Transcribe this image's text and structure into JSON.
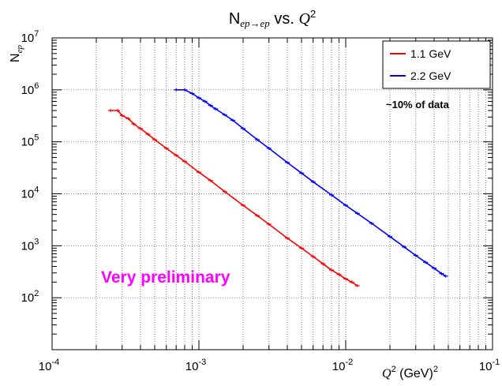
{
  "chart_data": {
    "type": "line",
    "title": {
      "prefix": "N",
      "sub": "ep→ep",
      "middle": " vs. ",
      "var": "Q",
      "sup": "2"
    },
    "ylabel": {
      "base": "N",
      "sub": "ep"
    },
    "xlabel": {
      "var": "Q",
      "sup": "2",
      "unit": " (GeV)",
      "unit_sup": "2"
    },
    "x_scale": "log",
    "y_scale": "log",
    "xlim": [
      0.0001,
      0.1
    ],
    "ylim": [
      10,
      10000000
    ],
    "x_ticks": [
      {
        "base": "10",
        "exp": "-4",
        "value": 0.0001
      },
      {
        "base": "10",
        "exp": "-3",
        "value": 0.001
      },
      {
        "base": "10",
        "exp": "-2",
        "value": 0.01
      },
      {
        "base": "10",
        "exp": "-1",
        "value": 0.1
      }
    ],
    "y_ticks": [
      {
        "base": "10",
        "exp": "2",
        "value": 100
      },
      {
        "base": "10",
        "exp": "3",
        "value": 1000
      },
      {
        "base": "10",
        "exp": "4",
        "value": 10000
      },
      {
        "base": "10",
        "exp": "5",
        "value": 100000
      },
      {
        "base": "10",
        "exp": "6",
        "value": 1000000
      },
      {
        "base": "10",
        "exp": "7",
        "value": 10000000
      }
    ],
    "grid": true,
    "legend_position": "top-right",
    "series": [
      {
        "name": "1.1 GeV",
        "color": "#ff0000",
        "x": [
          0.00025,
          0.00028,
          0.0003,
          0.00033,
          0.00036,
          0.0004,
          0.00045,
          0.0005,
          0.0006,
          0.0007,
          0.0008,
          0.001,
          0.0012,
          0.0015,
          0.002,
          0.0025,
          0.003,
          0.004,
          0.005,
          0.006,
          0.007,
          0.008,
          0.009,
          0.01,
          0.011,
          0.012
        ],
        "y": [
          400000,
          400000,
          320000,
          280000,
          220000,
          180000,
          140000,
          110000,
          75000,
          55000,
          42000,
          26000,
          18000,
          11000,
          6000,
          3800,
          2600,
          1400,
          900,
          620,
          450,
          340,
          280,
          230,
          200,
          170
        ]
      },
      {
        "name": "2.2 GeV",
        "color": "#0000ff",
        "x": [
          0.0007,
          0.0008,
          0.0009,
          0.001,
          0.0011,
          0.0012,
          0.0013,
          0.0015,
          0.0017,
          0.002,
          0.0025,
          0.003,
          0.004,
          0.005,
          0.006,
          0.008,
          0.01,
          0.012,
          0.015,
          0.02,
          0.025,
          0.03,
          0.035,
          0.04,
          0.045,
          0.048
        ],
        "y": [
          1000000,
          1000000,
          850000,
          700000,
          600000,
          500000,
          430000,
          330000,
          260000,
          180000,
          110000,
          75000,
          40000,
          25000,
          17000,
          9500,
          6000,
          4200,
          2700,
          1500,
          950,
          650,
          480,
          370,
          290,
          260
        ]
      }
    ],
    "annotations": [
      {
        "text": "~10% of data",
        "color": "#000000"
      },
      {
        "text": "Very preliminary",
        "color": "#ff00ff"
      }
    ]
  }
}
